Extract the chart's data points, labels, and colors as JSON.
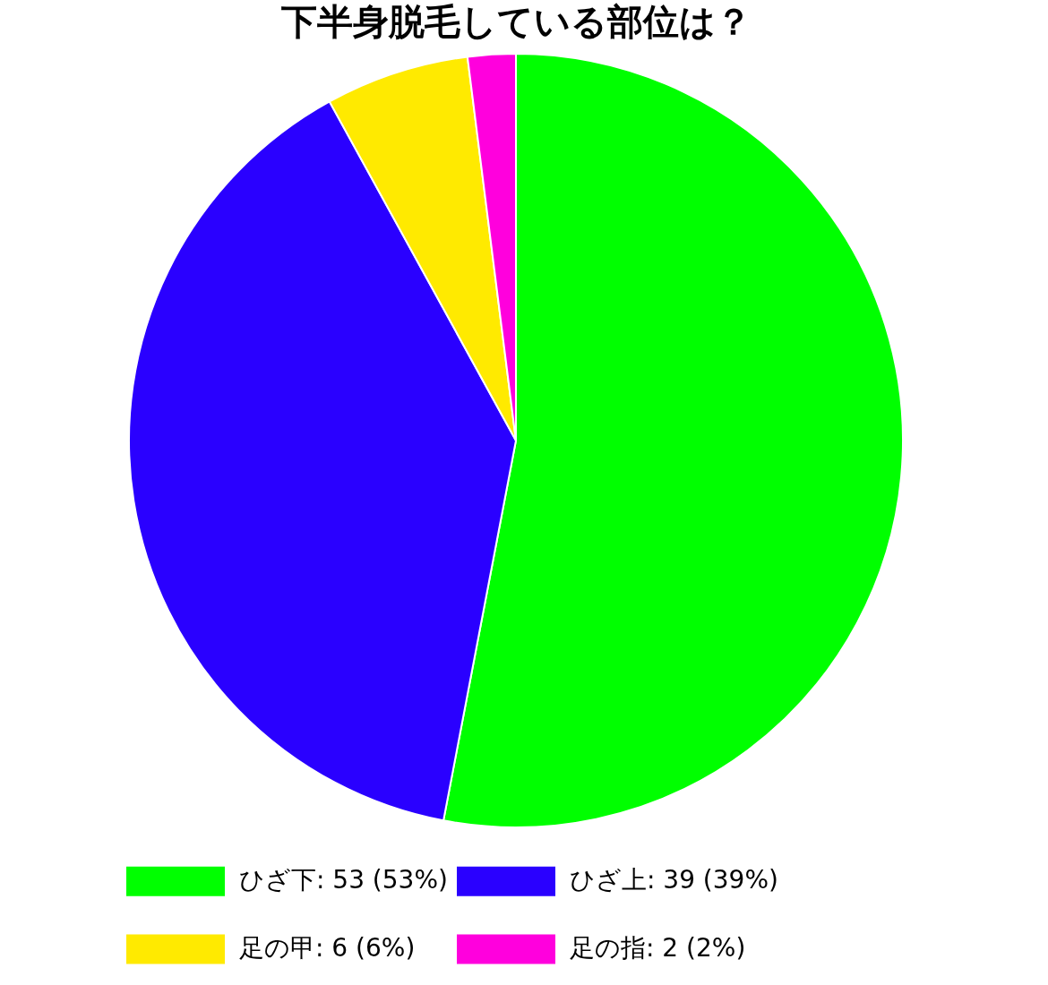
{
  "chart_data": {
    "type": "pie",
    "title": "下半身脱毛している部位は？",
    "categories": [
      "ひざ下",
      "ひざ上",
      "足の甲",
      "足の指"
    ],
    "values": [
      53,
      39,
      6,
      2
    ],
    "value_labels": [
      "53 (53%)",
      "39 (39%)",
      "6 (6%)",
      "2 (2%)"
    ],
    "colors": [
      "#00ff00",
      "#2a00ff",
      "#ffea00",
      "#ff00dd"
    ],
    "legend": "bottom"
  }
}
